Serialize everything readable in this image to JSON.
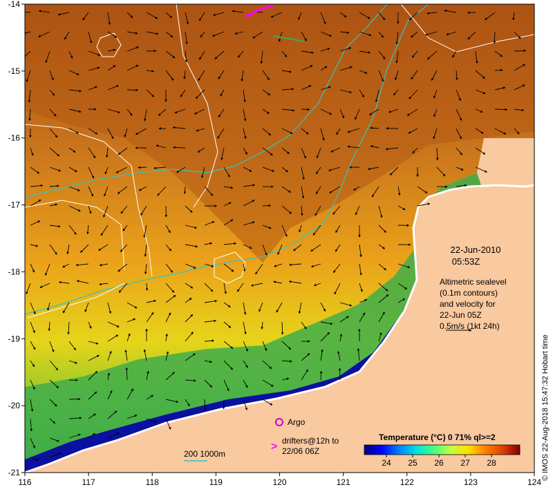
{
  "map": {
    "lon_range": [
      116,
      124
    ],
    "lat_range": [
      -21,
      -14
    ],
    "x_ticks": [
      "116",
      "117",
      "118",
      "119",
      "120",
      "121",
      "122",
      "123",
      "124"
    ],
    "y_ticks": [
      "-14",
      "-15",
      "-16",
      "-17",
      "-18",
      "-19",
      "-20",
      "-21"
    ],
    "colors": {
      "land": "#f9c9a0",
      "coast": "#ffffff",
      "contour_sealevel": "#ffffff",
      "contour_depth": "#33c4c4",
      "drifter": "#ff00ff",
      "argo": "#cc00cc"
    }
  },
  "info": {
    "date": "22-Jun-2010",
    "time": "05:53Z",
    "desc_line1": "Altimetric sealevel",
    "desc_line2": "(0.1m contours)",
    "desc_line3": "and velocity for",
    "desc_line4": "22-Jun 05Z",
    "desc_line5": "0.5m/s (1kt 24h)"
  },
  "legend": {
    "argo_label": "Argo",
    "drifters_line1": "drifters@12h to",
    "drifters_line2": "22/06 06Z",
    "depth_label": "200  1000m"
  },
  "colorbar": {
    "title": "Temperature (°C) 0 71% ql>=2",
    "ticks": [
      "24",
      "25",
      "26",
      "27",
      "28"
    ],
    "stops": [
      "#00007f",
      "#0000ff",
      "#0080ff",
      "#00e0e0",
      "#40ff80",
      "#c0ff40",
      "#ffe000",
      "#ff8000",
      "#e04000",
      "#800000"
    ]
  },
  "credit": "© IMOS 22-Aug-2018 15:47:32 Hobart time"
}
